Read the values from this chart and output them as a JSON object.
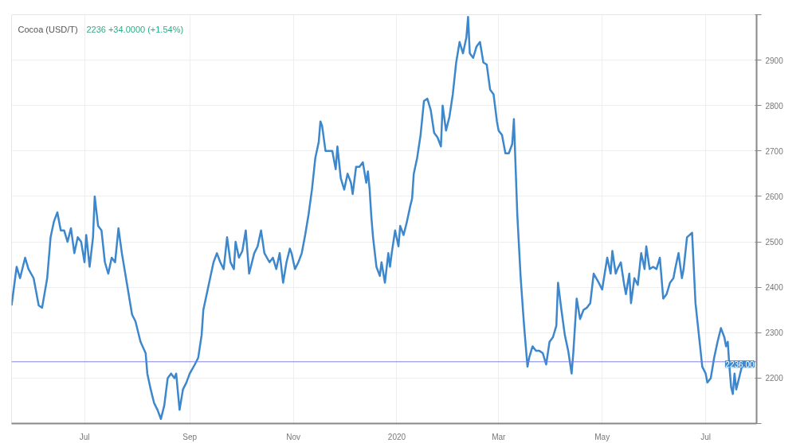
{
  "chart_data": {
    "type": "line",
    "title": "Cocoa (USD/T)",
    "subtitle": "2236   +34.0000 (+1.54%)",
    "x": [
      "2019-05-19",
      "2019-05-22",
      "2019-05-24",
      "2019-05-27",
      "2019-05-29",
      "2019-06-01",
      "2019-06-04",
      "2019-06-06",
      "2019-06-09",
      "2019-06-11",
      "2019-06-13",
      "2019-06-15",
      "2019-06-17",
      "2019-06-19",
      "2019-06-21",
      "2019-06-23",
      "2019-06-25",
      "2019-06-27",
      "2019-06-29",
      "2019-07-01",
      "2019-07-02",
      "2019-07-04",
      "2019-07-06",
      "2019-07-07",
      "2019-07-09",
      "2019-07-11",
      "2019-07-13",
      "2019-07-15",
      "2019-07-17",
      "2019-07-19",
      "2019-07-21",
      "2019-07-23",
      "2019-07-25",
      "2019-07-27",
      "2019-07-29",
      "2019-07-31",
      "2019-08-03",
      "2019-08-06",
      "2019-08-07",
      "2019-08-09",
      "2019-08-11",
      "2019-08-13",
      "2019-08-15",
      "2019-08-17",
      "2019-08-19",
      "2019-08-21",
      "2019-08-23",
      "2019-08-24",
      "2019-08-26",
      "2019-08-28",
      "2019-08-30",
      "2019-09-01",
      "2019-09-04",
      "2019-09-06",
      "2019-09-08",
      "2019-09-09",
      "2019-09-11",
      "2019-09-13",
      "2019-09-15",
      "2019-09-17",
      "2019-09-19",
      "2019-09-21",
      "2019-09-23",
      "2019-09-25",
      "2019-09-27",
      "2019-09-28",
      "2019-09-30",
      "2019-10-02",
      "2019-10-04",
      "2019-10-06",
      "2019-10-09",
      "2019-10-11",
      "2019-10-13",
      "2019-10-15",
      "2019-10-18",
      "2019-10-20",
      "2019-10-22",
      "2019-10-24",
      "2019-10-26",
      "2019-10-28",
      "2019-10-30",
      "2019-10-31",
      "2019-11-02",
      "2019-11-04",
      "2019-11-06",
      "2019-11-08",
      "2019-11-10",
      "2019-11-12",
      "2019-11-14",
      "2019-11-16",
      "2019-11-17",
      "2019-11-18",
      "2019-11-20",
      "2019-11-22",
      "2019-11-24",
      "2019-11-26",
      "2019-11-27",
      "2019-11-29",
      "2019-12-01",
      "2019-12-03",
      "2019-12-05",
      "2019-12-06",
      "2019-12-08",
      "2019-12-10",
      "2019-12-12",
      "2019-12-14",
      "2019-12-15",
      "2019-12-16",
      "2019-12-17",
      "2019-12-18",
      "2019-12-20",
      "2019-12-22",
      "2019-12-23",
      "2019-12-25",
      "2019-12-27",
      "2019-12-28",
      "2019-12-29",
      "2019-12-31",
      "2020-01-02",
      "2020-01-03",
      "2020-01-05",
      "2020-01-07",
      "2020-01-09",
      "2020-01-10",
      "2020-01-11",
      "2020-01-13",
      "2020-01-15",
      "2020-01-17",
      "2020-01-19",
      "2020-01-21",
      "2020-01-23",
      "2020-01-25",
      "2020-01-27",
      "2020-01-28",
      "2020-01-30",
      "2020-02-01",
      "2020-02-03",
      "2020-02-05",
      "2020-02-07",
      "2020-02-09",
      "2020-02-11",
      "2020-02-12",
      "2020-02-13",
      "2020-02-15",
      "2020-02-17",
      "2020-02-19",
      "2020-02-21",
      "2020-02-23",
      "2020-02-25",
      "2020-02-27",
      "2020-02-29",
      "2020-03-01",
      "2020-03-03",
      "2020-03-05",
      "2020-03-07",
      "2020-03-09",
      "2020-03-10",
      "2020-03-12",
      "2020-03-14",
      "2020-03-16",
      "2020-03-18",
      "2020-03-19",
      "2020-03-21",
      "2020-03-23",
      "2020-03-25",
      "2020-03-27",
      "2020-03-29",
      "2020-03-31",
      "2020-04-02",
      "2020-04-04",
      "2020-04-05",
      "2020-04-07",
      "2020-04-09",
      "2020-04-11",
      "2020-04-13",
      "2020-04-14",
      "2020-04-16",
      "2020-04-18",
      "2020-04-20",
      "2020-04-22",
      "2020-04-24",
      "2020-04-26",
      "2020-04-29",
      "2020-05-01",
      "2020-05-04",
      "2020-05-06",
      "2020-05-07",
      "2020-05-09",
      "2020-05-10",
      "2020-05-12",
      "2020-05-14",
      "2020-05-15",
      "2020-05-17",
      "2020-05-18",
      "2020-05-20",
      "2020-05-22",
      "2020-05-24",
      "2020-05-26",
      "2020-05-27",
      "2020-05-29",
      "2020-05-31",
      "2020-06-02",
      "2020-06-04",
      "2020-06-06",
      "2020-06-08",
      "2020-06-10",
      "2020-06-12",
      "2020-06-13",
      "2020-06-15",
      "2020-06-17",
      "2020-06-18",
      "2020-06-20",
      "2020-06-23",
      "2020-06-25",
      "2020-06-27",
      "2020-06-29",
      "2020-07-01",
      "2020-07-02",
      "2020-07-04",
      "2020-07-06",
      "2020-07-08",
      "2020-07-10",
      "2020-07-12",
      "2020-07-13",
      "2020-07-14",
      "2020-07-15",
      "2020-07-16",
      "2020-07-17",
      "2020-07-18",
      "2020-07-19",
      "2020-07-20",
      "2020-07-21",
      "2020-07-23"
    ],
    "series": [
      {
        "color": "#3d87cc",
        "values": [
          2360,
          2445,
          2420,
          2465,
          2440,
          2420,
          2360,
          2355,
          2420,
          2510,
          2545,
          2565,
          2525,
          2525,
          2500,
          2530,
          2475,
          2510,
          2500,
          2455,
          2515,
          2445,
          2510,
          2600,
          2535,
          2525,
          2455,
          2430,
          2465,
          2455,
          2530,
          2475,
          2430,
          2385,
          2340,
          2325,
          2280,
          2255,
          2210,
          2175,
          2145,
          2130,
          2110,
          2140,
          2200,
          2210,
          2200,
          2210,
          2130,
          2175,
          2190,
          2210,
          2230,
          2245,
          2295,
          2350,
          2385,
          2420,
          2455,
          2475,
          2455,
          2440,
          2510,
          2455,
          2440,
          2500,
          2465,
          2480,
          2525,
          2430,
          2475,
          2490,
          2525,
          2475,
          2455,
          2465,
          2440,
          2475,
          2410,
          2455,
          2485,
          2475,
          2440,
          2455,
          2475,
          2515,
          2560,
          2615,
          2685,
          2720,
          2765,
          2755,
          2700,
          2700,
          2700,
          2660,
          2710,
          2640,
          2615,
          2650,
          2630,
          2605,
          2665,
          2665,
          2675,
          2630,
          2655,
          2615,
          2555,
          2510,
          2445,
          2425,
          2455,
          2410,
          2475,
          2445,
          2475,
          2525,
          2490,
          2535,
          2515,
          2545,
          2580,
          2595,
          2650,
          2685,
          2735,
          2810,
          2815,
          2790,
          2740,
          2730,
          2710,
          2800,
          2745,
          2775,
          2825,
          2895,
          2940,
          2915,
          2950,
          2995,
          2915,
          2905,
          2930,
          2940,
          2895,
          2890,
          2835,
          2825,
          2765,
          2745,
          2735,
          2695,
          2695,
          2715,
          2770,
          2560,
          2420,
          2315,
          2225,
          2245,
          2270,
          2260,
          2260,
          2255,
          2230,
          2280,
          2290,
          2315,
          2410,
          2350,
          2295,
          2260,
          2210,
          2255,
          2375,
          2330,
          2350,
          2355,
          2365,
          2430,
          2410,
          2395,
          2465,
          2430,
          2480,
          2430,
          2440,
          2455,
          2405,
          2385,
          2430,
          2365,
          2420,
          2405,
          2475,
          2440,
          2490,
          2440,
          2445,
          2440,
          2465,
          2375,
          2385,
          2410,
          2420,
          2440,
          2475,
          2420,
          2440,
          2510,
          2520,
          2365,
          2295,
          2225,
          2210,
          2190,
          2200,
          2245,
          2280,
          2310,
          2290,
          2270,
          2280,
          2225,
          2180,
          2165,
          2210,
          2175,
          2190,
          2205,
          2236
        ]
      }
    ],
    "xlim": [
      "2019-05-19",
      "2020-07-31"
    ],
    "xticks": [
      {
        "value": "2019-07-01",
        "label": "Jul"
      },
      {
        "value": "2019-09-01",
        "label": "Sep"
      },
      {
        "value": "2019-11-01",
        "label": "Nov"
      },
      {
        "value": "2020-01-01",
        "label": "2020"
      },
      {
        "value": "2020-03-01",
        "label": "Mar"
      },
      {
        "value": "2020-05-01",
        "label": "May"
      },
      {
        "value": "2020-07-01",
        "label": "Jul"
      }
    ],
    "ylim": [
      2100,
      3000
    ],
    "yticks": [
      {
        "value": 2100,
        "label": null
      },
      2200,
      2300,
      2400,
      2500,
      2600,
      2700,
      2800,
      2900,
      {
        "value": 3000,
        "label": null
      }
    ],
    "ref_lines": [
      {
        "axis": "y",
        "value": 2236,
        "label": "2236.00",
        "color": "#7f7fe0"
      }
    ],
    "grid": true,
    "line_style": "solid"
  }
}
